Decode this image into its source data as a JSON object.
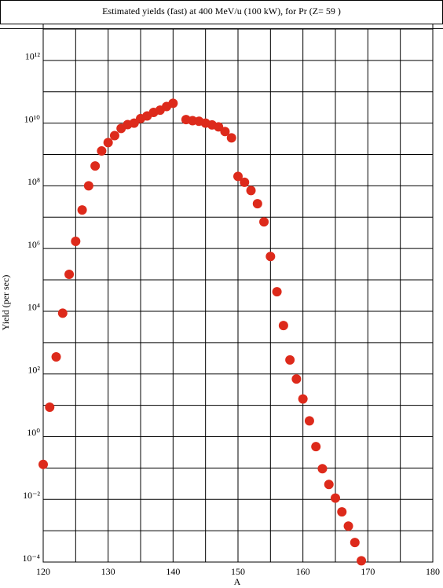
{
  "chart_data": {
    "type": "scatter",
    "title": "Estimated yields (fast) at 400 MeV/u (100 kW), for Pr (Z= 59 )",
    "x_label": "A",
    "y_label": "Yield (per sec)",
    "log_y": true,
    "grid": true,
    "xlim": [
      120,
      180
    ],
    "xticks": [
      120,
      130,
      140,
      150,
      160,
      170,
      180
    ],
    "xgrid_minor": [
      125,
      135,
      145,
      155,
      165,
      175
    ],
    "ylim": [
      0.0001,
      10000000000000
    ],
    "yticks": [
      {
        "value": 0.0001,
        "label": "10⁻⁴"
      },
      {
        "value": 0.01,
        "label": "10⁻²"
      },
      {
        "value": 1,
        "label": "10⁰"
      },
      {
        "value": 100,
        "label": "10²"
      },
      {
        "value": 10000,
        "label": "10⁴"
      },
      {
        "value": 1000000,
        "label": "10⁶"
      },
      {
        "value": 100000000,
        "label": "10⁸"
      },
      {
        "value": 10000000000,
        "label": "10¹⁰"
      },
      {
        "value": 1000000000000,
        "label": "10¹²"
      }
    ],
    "ygrid_minor": [
      0.001,
      0.1,
      10,
      1000,
      100000,
      10000000,
      1000000000,
      100000000000,
      10000000000000
    ],
    "series": [
      {
        "color": "#dd2a1b",
        "x": [
          120,
          121,
          122,
          123,
          124,
          125,
          126,
          127,
          128,
          129,
          130,
          131,
          132,
          133,
          134,
          135,
          136,
          137,
          138,
          139,
          140,
          142,
          143,
          144,
          145,
          146,
          147,
          148,
          149,
          150,
          151,
          152,
          153,
          154,
          155,
          156,
          157,
          158,
          159,
          160,
          161,
          162,
          163,
          164,
          165,
          166,
          167,
          168,
          169
        ],
        "values": [
          0.13,
          8.7,
          350,
          8700,
          150000,
          1700000,
          17000000,
          100000000,
          430000000,
          1300000000,
          2400000000,
          4000000000,
          6800000000,
          9000000000,
          10000000000,
          14000000000,
          17000000000,
          22000000000,
          26000000000,
          34000000000,
          43000000000,
          13000000000,
          12000000000,
          11500000000,
          10000000000,
          8800000000,
          7600000000,
          5400000000,
          3400000000,
          200000000,
          130000000,
          71000000,
          27000000,
          7100000,
          560000,
          42000,
          3500,
          280,
          69,
          16,
          3.2,
          0.48,
          0.095,
          0.03,
          0.011,
          0.004,
          0.0014,
          0.00042,
          0.00011
        ]
      }
    ]
  }
}
